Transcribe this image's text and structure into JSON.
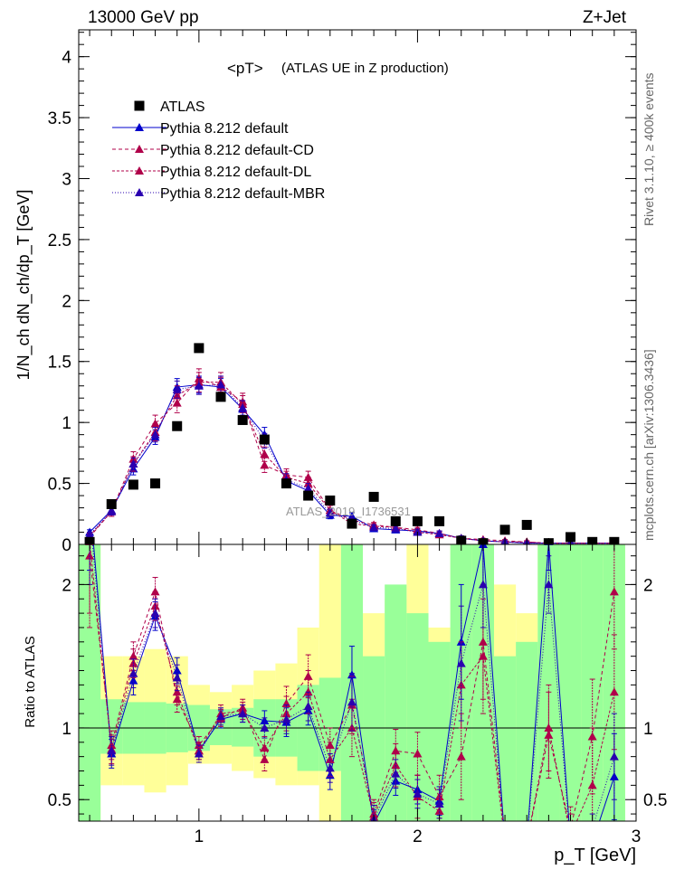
{
  "header": {
    "energy_label": "13000 GeV pp",
    "process_label": "Z+Jet",
    "plot_title": "<pT>",
    "plot_subtitle": "(ATLAS UE in Z production)",
    "watermark": "ATLAS_2019_I1736531",
    "right_label_top": "Rivet 3.1.10, ≥ 400k events",
    "right_label_bottom": "mcplots.cern.ch [arXiv:1306.3436]"
  },
  "colors": {
    "data": "#000000",
    "default": "#0000cc",
    "cd": "#b0004a",
    "dl": "#b0004a",
    "mbr": "#2a00b0",
    "band_inner": "#99ff99",
    "band_outer": "#ffff99"
  },
  "chart_data": [
    {
      "type": "scatter",
      "panel": "main",
      "ylabel": "1/N_ch dN_ch/dp_T [GeV]",
      "xlim": [
        0.45,
        3.0
      ],
      "ylim": [
        0,
        4.22
      ],
      "x_ticks": [
        1,
        2,
        3
      ],
      "y_ticks": [
        0,
        0.5,
        1,
        1.5,
        2,
        2.5,
        3,
        3.5,
        4
      ],
      "y_tick_labels": [
        "0",
        "0.5",
        "1",
        "1.5",
        "2",
        "2.5",
        "3",
        "3.5",
        "4"
      ],
      "legend": [
        {
          "name": "ATLAS",
          "style": "data"
        },
        {
          "name": "Pythia 8.212 default",
          "style": "default"
        },
        {
          "name": "Pythia 8.212 default-CD",
          "style": "cd"
        },
        {
          "name": "Pythia 8.212 default-DL",
          "style": "dl"
        },
        {
          "name": "Pythia 8.212 default-MBR",
          "style": "mbr"
        }
      ],
      "x": [
        0.5,
        0.6,
        0.7,
        0.8,
        0.9,
        1.0,
        1.1,
        1.2,
        1.3,
        1.4,
        1.5,
        1.6,
        1.7,
        1.8,
        1.9,
        2.0,
        2.1,
        2.2,
        2.3,
        2.4,
        2.5,
        2.6,
        2.7,
        2.8,
        2.9
      ],
      "series": [
        {
          "name": "ATLAS",
          "style": "data",
          "values": [
            0.02,
            0.33,
            0.49,
            0.5,
            0.97,
            1.61,
            1.21,
            1.02,
            0.86,
            0.5,
            0.4,
            0.36,
            0.17,
            0.39,
            0.19,
            0.19,
            0.19,
            0.03,
            0.01,
            0.12,
            0.16,
            0.01,
            0.06,
            0.02,
            0.02
          ]
        },
        {
          "name": "Pythia 8.212 default",
          "style": "default",
          "values": [
            0.1,
            0.28,
            0.62,
            0.88,
            1.29,
            1.31,
            1.29,
            1.11,
            0.9,
            0.52,
            0.44,
            0.24,
            0.23,
            0.13,
            0.12,
            0.11,
            0.09,
            0.05,
            0.03,
            0.02,
            0.01,
            0.01,
            0.01,
            0.01,
            0.01
          ],
          "errors": [
            0.02,
            0.03,
            0.05,
            0.06,
            0.07,
            0.07,
            0.07,
            0.06,
            0.06,
            0.05,
            0.04,
            0.03,
            0.03,
            0.02,
            0.02,
            0.02,
            0.02,
            0.02,
            0.01,
            0.01,
            0.01,
            0.01,
            0.01,
            0.01,
            0.01
          ]
        },
        {
          "name": "Pythia 8.212 default-CD",
          "style": "cd",
          "values": [
            0.06,
            0.27,
            0.7,
            0.99,
            1.16,
            1.36,
            1.29,
            1.17,
            0.65,
            0.57,
            0.55,
            0.28,
            0.2,
            0.16,
            0.14,
            0.12,
            0.09,
            0.05,
            0.04,
            0.03,
            0.02,
            0.01,
            0.01,
            0.01,
            0.01
          ],
          "errors": [
            0.02,
            0.04,
            0.06,
            0.07,
            0.08,
            0.08,
            0.08,
            0.07,
            0.06,
            0.05,
            0.05,
            0.04,
            0.03,
            0.02,
            0.02,
            0.02,
            0.02,
            0.02,
            0.01,
            0.01,
            0.01,
            0.01,
            0.01,
            0.01,
            0.01
          ]
        },
        {
          "name": "Pythia 8.212 default-DL",
          "style": "dl",
          "values": [
            0.07,
            0.27,
            0.66,
            0.92,
            1.22,
            1.33,
            1.33,
            1.15,
            0.74,
            0.55,
            0.5,
            0.28,
            0.17,
            0.15,
            0.14,
            0.1,
            0.08,
            0.05,
            0.03,
            0.02,
            0.02,
            0.01,
            0.01,
            0.01,
            0.01
          ],
          "errors": [
            0.02,
            0.04,
            0.06,
            0.07,
            0.08,
            0.08,
            0.08,
            0.07,
            0.06,
            0.05,
            0.05,
            0.04,
            0.03,
            0.02,
            0.02,
            0.02,
            0.02,
            0.02,
            0.01,
            0.01,
            0.01,
            0.01,
            0.01,
            0.01,
            0.01
          ]
        },
        {
          "name": "Pythia 8.212 default-MBR",
          "style": "mbr",
          "values": [
            0.08,
            0.27,
            0.66,
            0.9,
            1.27,
            1.3,
            1.31,
            1.12,
            0.85,
            0.53,
            0.46,
            0.26,
            0.2,
            0.14,
            0.13,
            0.1,
            0.09,
            0.05,
            0.03,
            0.02,
            0.01,
            0.01,
            0.01,
            0.01,
            0.01
          ],
          "errors": [
            0.02,
            0.03,
            0.05,
            0.06,
            0.07,
            0.07,
            0.07,
            0.06,
            0.06,
            0.05,
            0.04,
            0.03,
            0.03,
            0.02,
            0.02,
            0.02,
            0.02,
            0.02,
            0.01,
            0.01,
            0.01,
            0.01,
            0.01,
            0.01,
            0.01
          ]
        }
      ]
    },
    {
      "type": "line",
      "panel": "ratio",
      "xlabel": "p_T [GeV]",
      "ylabel": "Ratio to ATLAS",
      "xlim": [
        0.45,
        3.0
      ],
      "ylim": [
        0.35,
        2.28
      ],
      "x_ticks": [
        1,
        2,
        3
      ],
      "x_tick_labels": [
        "1",
        "2",
        "3"
      ],
      "y_ticks": [
        0.5,
        1,
        2
      ],
      "y_tick_labels": [
        "0.5",
        "1",
        "2"
      ],
      "bands": {
        "edges": [
          0.45,
          0.55,
          0.65,
          0.75,
          0.85,
          0.95,
          1.05,
          1.15,
          1.25,
          1.35,
          1.45,
          1.55,
          1.65,
          1.75,
          1.85,
          1.95,
          2.05,
          2.15,
          2.25,
          2.35,
          2.45,
          2.55,
          2.65,
          2.75,
          2.85,
          2.95
        ],
        "inner_low": [
          0.35,
          0.82,
          0.82,
          0.82,
          0.83,
          0.84,
          0.88,
          0.87,
          0.8,
          0.8,
          0.7,
          0.7,
          0.35,
          0.35,
          0.35,
          0.35,
          0.35,
          0.35,
          0.35,
          0.35,
          0.35,
          0.35,
          0.35,
          0.35,
          0.35
        ],
        "inner_high": [
          2.28,
          1.2,
          1.18,
          1.18,
          1.17,
          1.16,
          1.13,
          1.14,
          1.2,
          1.2,
          1.3,
          1.35,
          2.28,
          1.5,
          2.0,
          1.8,
          1.6,
          2.28,
          2.28,
          1.5,
          1.6,
          2.28,
          2.28,
          2.28,
          2.28
        ],
        "outer_low": [
          0.35,
          0.6,
          0.6,
          0.55,
          0.6,
          0.75,
          0.75,
          0.7,
          0.65,
          0.6,
          0.6,
          0.35,
          0.35,
          0.35,
          0.35,
          0.35,
          0.35,
          0.35,
          0.35,
          0.35,
          0.35,
          0.35,
          0.35,
          0.35,
          0.35
        ],
        "outer_high": [
          2.28,
          1.5,
          1.5,
          1.55,
          1.5,
          1.3,
          1.25,
          1.3,
          1.4,
          1.45,
          1.7,
          2.28,
          2.28,
          1.8,
          1.9,
          2.28,
          1.7,
          2.28,
          2.28,
          2.0,
          1.8,
          2.28,
          2.28,
          2.28,
          2.28
        ]
      },
      "series": [
        {
          "name": "Pythia 8.212 default",
          "style": "default",
          "values": [
            2.6,
            0.82,
            1.33,
            1.78,
            1.4,
            0.84,
            1.06,
            1.1,
            1.05,
            1.04,
            1.12,
            0.67,
            1.37,
            0.33,
            0.63,
            0.57,
            0.49,
            1.6,
            2.28,
            0.2,
            0.2,
            2.3,
            0.2,
            0.2,
            0.66
          ],
          "errors": [
            0.5,
            0.1,
            0.1,
            0.1,
            0.09,
            0.06,
            0.06,
            0.06,
            0.07,
            0.1,
            0.1,
            0.1,
            0.2,
            0.1,
            0.1,
            0.1,
            0.1,
            0.4,
            0.3,
            0.1,
            0.1,
            0.2,
            0.1,
            0.1,
            0.3
          ]
        },
        {
          "name": "Pythia 8.212 default-CD",
          "style": "cd",
          "values": [
            2.2,
            0.88,
            1.5,
            1.95,
            1.2,
            0.88,
            1.07,
            1.14,
            0.78,
            1.17,
            1.36,
            0.88,
            1.16,
            0.4,
            0.84,
            0.82,
            0.52,
            0.8,
            1.6,
            0.25,
            0.2,
            0.95,
            0.3,
            0.94,
            1.95
          ],
          "errors": [
            0.5,
            0.1,
            0.1,
            0.1,
            0.09,
            0.06,
            0.06,
            0.06,
            0.08,
            0.12,
            0.15,
            0.12,
            0.2,
            0.1,
            0.15,
            0.15,
            0.15,
            0.3,
            0.4,
            0.1,
            0.1,
            0.3,
            0.15,
            0.4,
            0.4
          ]
        },
        {
          "name": "Pythia 8.212 default-DL",
          "style": "dl",
          "values": [
            2.3,
            0.85,
            1.45,
            1.85,
            1.25,
            0.84,
            1.1,
            1.12,
            0.86,
            1.1,
            1.25,
            0.78,
            1.0,
            0.38,
            0.74,
            0.52,
            0.42,
            1.3,
            1.5,
            0.2,
            0.2,
            1.0,
            0.25,
            0.6,
            1.25
          ],
          "errors": [
            0.5,
            0.1,
            0.1,
            0.1,
            0.09,
            0.06,
            0.06,
            0.06,
            0.08,
            0.12,
            0.15,
            0.12,
            0.2,
            0.1,
            0.15,
            0.15,
            0.15,
            0.3,
            0.4,
            0.1,
            0.1,
            0.3,
            0.15,
            0.4,
            0.4
          ]
        },
        {
          "name": "Pythia 8.212 default-MBR",
          "style": "mbr",
          "values": [
            2.5,
            0.84,
            1.38,
            1.8,
            1.35,
            0.82,
            1.08,
            1.1,
            1.0,
            1.06,
            1.15,
            0.72,
            1.18,
            0.36,
            0.68,
            0.54,
            0.47,
            1.45,
            2.0,
            0.2,
            0.2,
            2.0,
            0.2,
            0.3,
            0.8
          ],
          "errors": [
            0.5,
            0.1,
            0.1,
            0.1,
            0.09,
            0.06,
            0.06,
            0.06,
            0.07,
            0.1,
            0.1,
            0.1,
            0.2,
            0.1,
            0.1,
            0.1,
            0.1,
            0.4,
            0.3,
            0.1,
            0.1,
            0.2,
            0.1,
            0.1,
            0.3
          ]
        }
      ]
    }
  ]
}
